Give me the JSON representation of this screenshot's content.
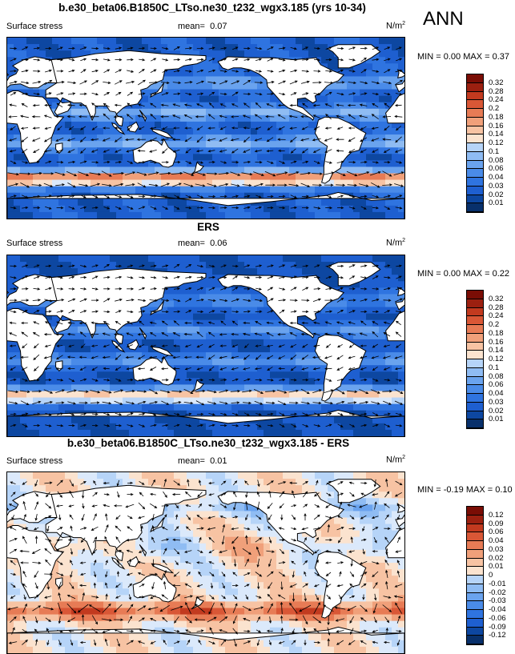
{
  "season": "ANN",
  "colors": {
    "positive_scale": [
      "#08306b",
      "#0d47a1",
      "#1e5fd0",
      "#2f74e0",
      "#4a8be8",
      "#6aa3ee",
      "#8fbcf3",
      "#b6d4f8",
      "#dbe9fb",
      "#fbe3cf",
      "#f7c3a3",
      "#f0a07a",
      "#e77b55",
      "#d95736",
      "#c23a1f",
      "#9c2010",
      "#7a0d05"
    ],
    "land": "#ffffff",
    "coast": "#000000"
  },
  "chart_data": [
    {
      "type": "heatmap",
      "panel": "model",
      "title": "b.e30_beta06.B1850C_LTso.ne30_t232_wgx3.185 (yrs 10-34)",
      "left_label": "Surface stress",
      "mean_label": "mean=",
      "mean_value": "0.07",
      "units": "N/m",
      "units_exp": "2",
      "min_label": "MIN =",
      "min_value": "0.00",
      "max_label": "MAX =",
      "max_value": "0.37",
      "levels": [
        "0.01",
        "0.02",
        "0.03",
        "0.04",
        "0.06",
        "0.08",
        "0.1",
        "0.12",
        "0.14",
        "0.16",
        "0.18",
        "0.2",
        "0.24",
        "0.28",
        "0.32"
      ],
      "x_range_deg_lon": [
        0,
        360
      ],
      "y_range_deg_lat": [
        -90,
        90
      ]
    },
    {
      "type": "heatmap",
      "panel": "obs",
      "title": "ERS",
      "left_label": "Surface stress",
      "mean_label": "mean=",
      "mean_value": "0.06",
      "units": "N/m",
      "units_exp": "2",
      "min_label": "MIN =",
      "min_value": "0.00",
      "max_label": "MAX =",
      "max_value": "0.22",
      "levels": [
        "0.01",
        "0.02",
        "0.03",
        "0.04",
        "0.06",
        "0.08",
        "0.1",
        "0.12",
        "0.14",
        "0.16",
        "0.18",
        "0.2",
        "0.24",
        "0.28",
        "0.32"
      ],
      "x_range_deg_lon": [
        0,
        360
      ],
      "y_range_deg_lat": [
        -90,
        90
      ]
    },
    {
      "type": "heatmap",
      "panel": "diff",
      "title": "b.e30_beta06.B1850C_LTso.ne30_t232_wgx3.185 - ERS",
      "left_label": "Surface stress",
      "mean_label": "mean=",
      "mean_value": "0.01",
      "units": "N/m",
      "units_exp": "2",
      "min_label": "MIN =",
      "min_value": "-0.19",
      "max_label": "MAX =",
      "max_value": "0.10",
      "levels": [
        "-0.12",
        "-0.09",
        "-0.06",
        "-0.04",
        "-0.03",
        "-0.02",
        "-0.01",
        "0",
        "0.01",
        "0.02",
        "0.03",
        "0.04",
        "0.06",
        "0.09",
        "0.12"
      ],
      "x_range_deg_lon": [
        0,
        360
      ],
      "y_range_deg_lat": [
        -90,
        90
      ]
    }
  ]
}
